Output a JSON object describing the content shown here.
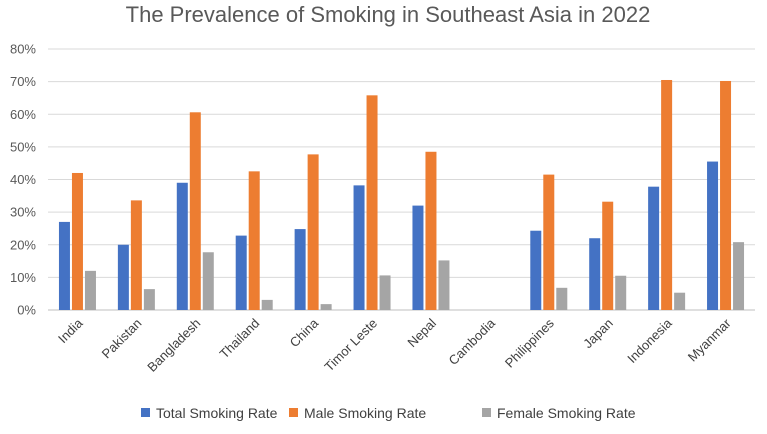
{
  "chart_data": {
    "type": "bar",
    "title": "The Prevalence of Smoking in Southeast Asia in 2022",
    "xlabel": "",
    "ylabel": "",
    "ylim": [
      0,
      80
    ],
    "yticks": [
      "0%",
      "10%",
      "20%",
      "30%",
      "40%",
      "50%",
      "60%",
      "70%",
      "80%"
    ],
    "grid": true,
    "legend_position": "bottom",
    "categories": [
      "India",
      "Pakistan",
      "Bangladesh",
      "Thailand",
      "China",
      "Timor Leste",
      "Nepal",
      "Cambodia",
      "Philippines",
      "Japan",
      "Indonesia",
      "Myanmar"
    ],
    "series": [
      {
        "name": "Total Smoking Rate",
        "color": "#4472c4",
        "values": [
          27,
          20,
          39,
          22.8,
          24.8,
          38.2,
          32,
          null,
          24.3,
          22,
          37.8,
          45.5
        ]
      },
      {
        "name": "Male Smoking Rate",
        "color": "#ed7d31",
        "values": [
          42,
          33.6,
          60.6,
          42.5,
          47.7,
          65.8,
          48.5,
          null,
          41.5,
          33.2,
          70.5,
          70.2
        ]
      },
      {
        "name": "Female Smoking Rate",
        "color": "#a5a5a5",
        "values": [
          12,
          6.4,
          17.7,
          3.1,
          1.8,
          10.6,
          15.2,
          null,
          6.8,
          10.5,
          5.3,
          20.8
        ]
      }
    ]
  }
}
